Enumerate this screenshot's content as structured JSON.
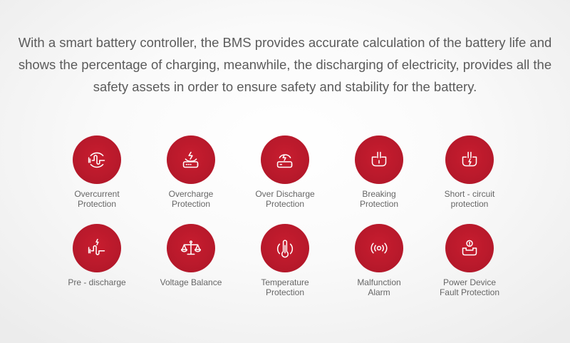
{
  "intro": {
    "lines": [
      "With a smart battery controller, the BMS provides accurate calculation of the battery life and",
      "shows the percentage of charging, meanwhile, the discharging of electricity, provides all the",
      "safety assets in order to ensure safety and stability for the battery."
    ]
  },
  "colors": {
    "accent": "#b8192b",
    "text": "#5b5b5b",
    "background": "#f7f7f7"
  },
  "features": [
    {
      "icon": "current-wave-icon",
      "label": [
        "Overcurrent",
        "Protection"
      ]
    },
    {
      "icon": "battery-charge-icon",
      "label": [
        "Overcharge",
        "Protection"
      ]
    },
    {
      "icon": "battery-discharge-icon",
      "label": [
        "Over Discharge",
        "Protection"
      ]
    },
    {
      "icon": "breaking-plug-icon",
      "label": [
        "Breaking",
        "Protection"
      ]
    },
    {
      "icon": "short-circuit-plug-icon",
      "label": [
        "Short - circuit",
        "protection"
      ]
    },
    {
      "icon": "pre-discharge-icon",
      "label": [
        "Pre - discharge"
      ]
    },
    {
      "icon": "balance-scale-icon",
      "label": [
        "Voltage Balance"
      ]
    },
    {
      "icon": "thermometer-icon",
      "label": [
        "Temperature",
        "Protection"
      ]
    },
    {
      "icon": "alarm-signal-icon",
      "label": [
        "Malfunction",
        "Alarm"
      ]
    },
    {
      "icon": "power-device-icon",
      "label": [
        "Power Device",
        "Fault Protection"
      ]
    }
  ]
}
